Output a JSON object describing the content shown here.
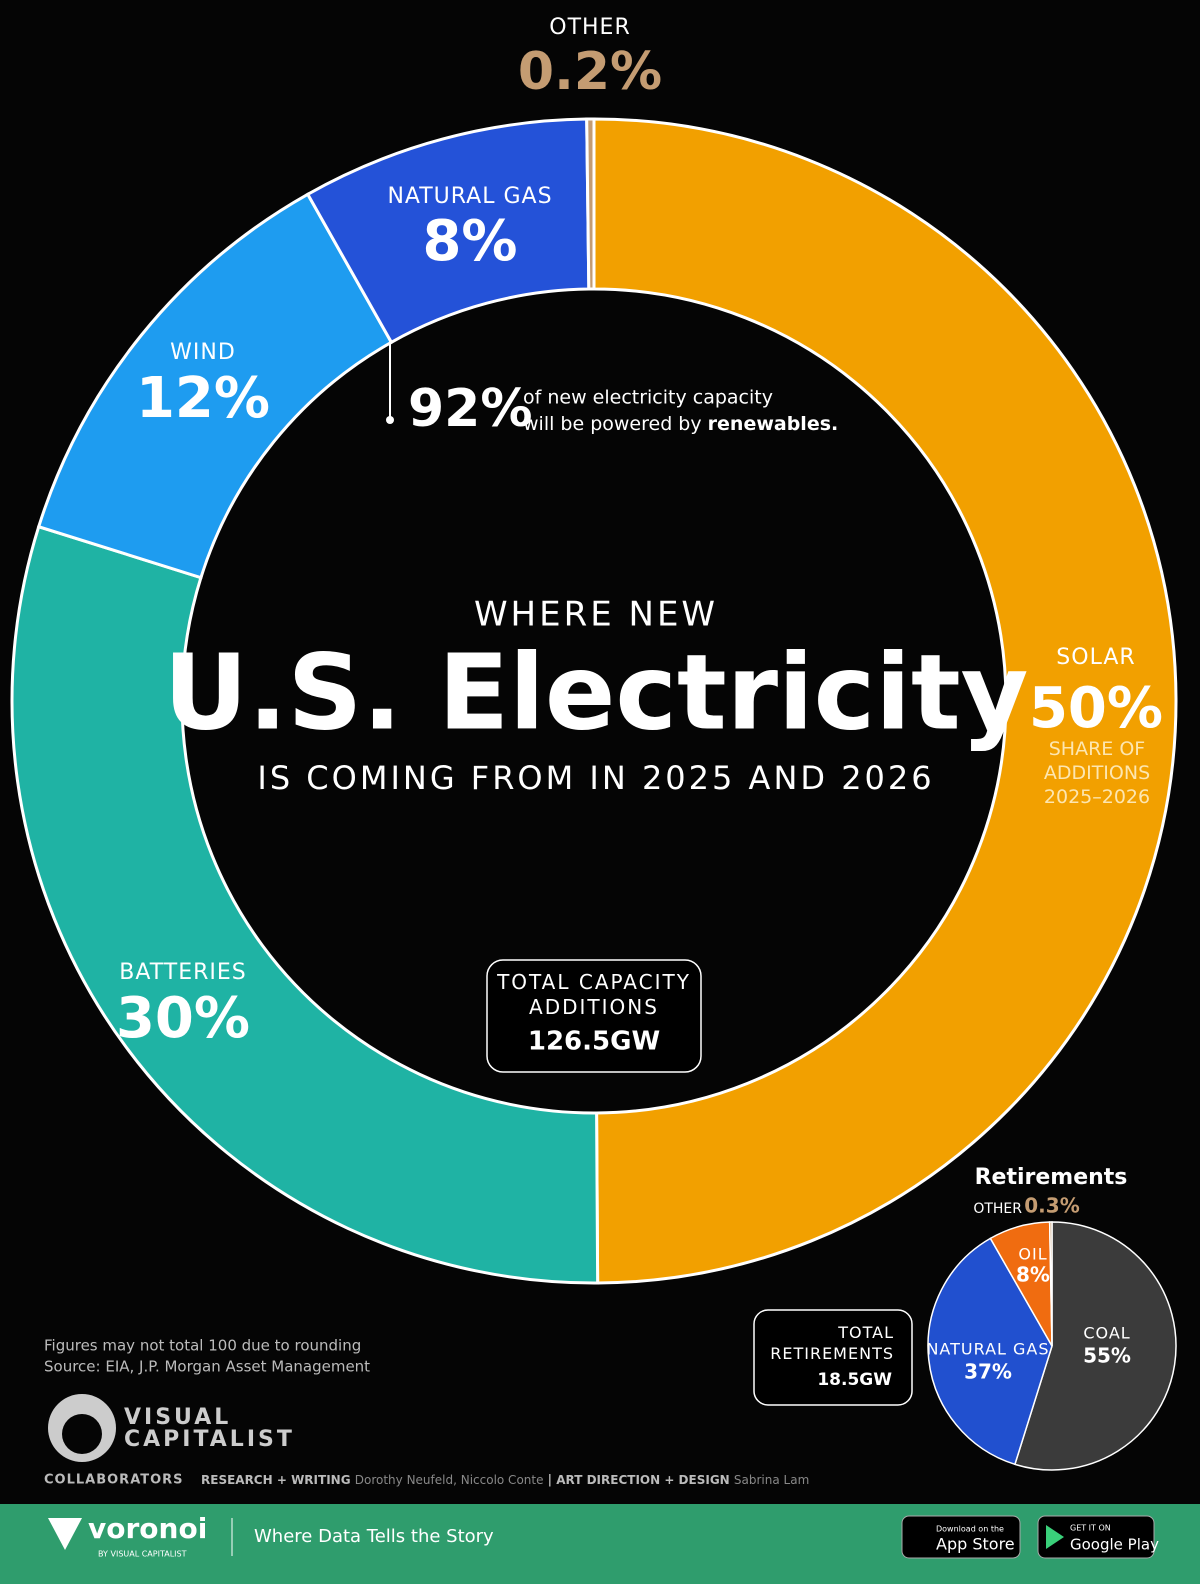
{
  "chart_data": [
    {
      "type": "donut",
      "pretitle": "WHERE NEW",
      "title": "U.S. Electricity",
      "subtitle": "IS COMING FROM IN 2025 AND 2026",
      "categories": [
        "SOLAR",
        "BATTERIES",
        "WIND",
        "NATURAL GAS",
        "OTHER"
      ],
      "values": [
        50,
        30,
        12,
        8,
        0.2
      ],
      "value_labels": [
        "50%",
        "30%",
        "12%",
        "8%",
        "0.2%"
      ],
      "colors": [
        "#f2a000",
        "#1fb3a4",
        "#1e9cf0",
        "#2452d8",
        "#c49c72"
      ],
      "value_note": "SHARE OF ADDITIONS 2025–2026",
      "annotation": {
        "label": "92%",
        "text": "of new electricity capacity",
        "text2": "will be powered by",
        "emphasis": "renewables."
      },
      "total_label": "TOTAL CAPACITY ADDITIONS",
      "total": "126.5GW"
    },
    {
      "type": "pie",
      "title": "Retirements",
      "categories": [
        "COAL",
        "NATURAL GAS",
        "OIL",
        "OTHER"
      ],
      "values": [
        55,
        37,
        8,
        0.3
      ],
      "value_labels": [
        "55%",
        "37%",
        "8%",
        "0.3%"
      ],
      "colors": [
        "#3b3b3b",
        "#2150cf",
        "#f06c10",
        "#c49c72"
      ],
      "total_label": "TOTAL RETIREMENTS",
      "total": "18.5GW"
    }
  ],
  "notes": [
    "Figures may not total 100 due to rounding",
    "Source: EIA, J.P. Morgan Asset Management"
  ],
  "logo": [
    "VISUAL",
    "CAPITALIST"
  ],
  "credits": {
    "heading": "COLLABORATORS",
    "role1": "RESEARCH + WRITING",
    "names1": "Dorothy Neufeld, Niccolo Conte",
    "role2": "ART DIRECTION + DESIGN",
    "names2": "Sabrina Lam"
  },
  "footer": {
    "brand": "voronoi",
    "byline": "BY VISUAL CAPITALIST",
    "tagline": "Where Data Tells the Story",
    "app_small": "Download on the",
    "app": "App Store",
    "play_small": "GET IT ON",
    "play": "Google Play"
  }
}
